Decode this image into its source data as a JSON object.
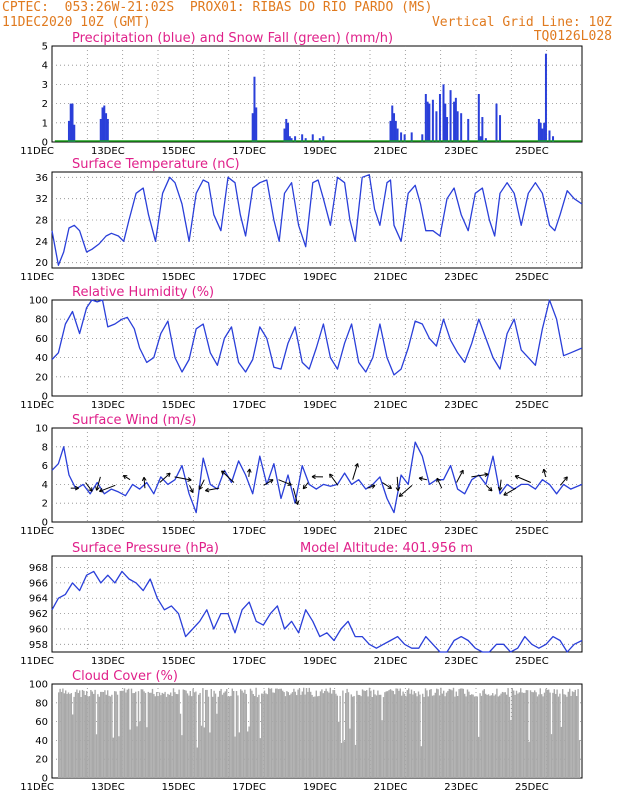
{
  "header": {
    "line1": "CPTEC:  053:26W-21:02S  PROX01: RIBAS DO RIO PARDO (MS)",
    "line2_left": "11DEC2020 10Z (GMT)",
    "line2_right": "Vertical Grid Line: 10Z",
    "line3_right": "TQ0126L028"
  },
  "colors": {
    "header": "#e07a1f",
    "title": "#e0208a",
    "line": "#2a3fd9",
    "snow": "#1a9e1a",
    "cloud": "#a9a9a9",
    "grid": "#8a8a8a",
    "arrow": "#000000"
  },
  "x_labels": [
    "11DEC",
    "13DEC",
    "15DEC",
    "17DEC",
    "19DEC",
    "21DEC",
    "23DEC",
    "25DEC"
  ],
  "chart_data": [
    {
      "type": "bar",
      "title": "Precipitation (blue) and Snow Fall (green) (mm/h)",
      "ylim": [
        0,
        5
      ],
      "yticks": [
        0,
        1,
        2,
        3,
        4,
        5
      ],
      "x_range_days": [
        11.42,
        26.42
      ],
      "series": [
        {
          "name": "Precipitation",
          "x": [
            11.9,
            11.95,
            12.0,
            12.05,
            12.8,
            12.85,
            12.9,
            12.95,
            13.0,
            17.1,
            17.15,
            17.2,
            18.0,
            18.05,
            18.1,
            18.15,
            18.2,
            18.3,
            18.5,
            18.6,
            18.8,
            19.0,
            19.1,
            21.0,
            21.05,
            21.1,
            21.15,
            21.2,
            21.3,
            21.4,
            21.6,
            21.9,
            22.0,
            22.05,
            22.1,
            22.2,
            22.3,
            22.4,
            22.5,
            22.55,
            22.6,
            22.7,
            22.8,
            22.85,
            22.9,
            23.0,
            23.2,
            23.5,
            23.55,
            23.6,
            23.7,
            24.0,
            24.1,
            25.2,
            25.25,
            25.3,
            25.35,
            25.4,
            25.5,
            25.6
          ],
          "values": [
            1.1,
            2.0,
            2.0,
            0.9,
            1.2,
            1.8,
            1.9,
            1.5,
            1.2,
            1.5,
            3.4,
            1.8,
            0.7,
            1.2,
            1.0,
            0.3,
            0.2,
            0.3,
            0.4,
            0.2,
            0.4,
            0.2,
            0.3,
            1.1,
            1.9,
            1.5,
            1.1,
            0.7,
            0.5,
            0.4,
            0.5,
            0.4,
            2.5,
            2.1,
            2.0,
            2.2,
            1.6,
            2.5,
            3.0,
            2.0,
            1.3,
            2.7,
            2.1,
            2.3,
            1.6,
            1.5,
            1.2,
            2.5,
            0.3,
            1.3,
            0.2,
            2.0,
            1.4,
            1.2,
            1.0,
            0.7,
            1.0,
            4.6,
            0.6,
            0.3
          ]
        },
        {
          "name": "Snow Fall",
          "x": [
            11.5,
            26.4
          ],
          "values": [
            0.05,
            0.05
          ]
        }
      ]
    },
    {
      "type": "line",
      "title": "Surface Temperature (nC)",
      "ylim": [
        19,
        37
      ],
      "yticks": [
        20,
        24,
        28,
        32,
        36
      ],
      "x": [
        11.42,
        11.6,
        11.75,
        11.9,
        12.05,
        12.2,
        12.4,
        12.55,
        12.75,
        12.95,
        13.1,
        13.3,
        13.45,
        13.6,
        13.8,
        14.0,
        14.15,
        14.35,
        14.55,
        14.75,
        14.9,
        15.1,
        15.3,
        15.5,
        15.7,
        15.85,
        16.0,
        16.2,
        16.4,
        16.6,
        16.75,
        16.9,
        17.1,
        17.3,
        17.5,
        17.7,
        17.85,
        18.0,
        18.2,
        18.4,
        18.6,
        18.8,
        18.95,
        19.1,
        19.3,
        19.5,
        19.7,
        19.85,
        20.0,
        20.2,
        20.4,
        20.55,
        20.7,
        20.9,
        21.0,
        21.1,
        21.3,
        21.5,
        21.7,
        21.85,
        22.0,
        22.2,
        22.4,
        22.6,
        22.8,
        23.0,
        23.2,
        23.4,
        23.6,
        23.8,
        23.95,
        24.1,
        24.3,
        24.5,
        24.7,
        24.9,
        25.1,
        25.3,
        25.5,
        25.65,
        25.8,
        26.0,
        26.2,
        26.42
      ],
      "values": [
        26,
        19.5,
        22,
        26.5,
        27,
        26,
        22,
        22.5,
        23.5,
        25,
        25.5,
        25,
        24,
        28,
        33,
        34,
        29,
        24,
        33,
        36,
        35,
        31,
        24,
        33,
        35.5,
        35,
        29,
        26,
        36,
        35,
        29,
        25,
        34,
        35,
        35.5,
        28,
        24,
        33,
        35,
        27,
        23,
        35,
        35.5,
        32,
        27,
        36,
        35,
        28,
        24,
        36,
        36.5,
        30,
        27,
        35,
        35.5,
        27,
        24,
        33,
        34.5,
        31,
        26,
        26,
        25,
        32,
        34,
        29,
        26,
        33,
        34,
        28,
        25,
        33,
        35,
        33,
        27,
        33,
        35,
        33,
        27,
        26,
        29,
        33.5,
        32,
        31
      ]
    },
    {
      "type": "line",
      "title": "Relative Humidity (%)",
      "ylim": [
        0,
        100
      ],
      "yticks": [
        0,
        20,
        40,
        60,
        80,
        100
      ],
      "x": [
        11.42,
        11.6,
        11.8,
        12.0,
        12.2,
        12.4,
        12.55,
        12.7,
        12.85,
        13.0,
        13.2,
        13.4,
        13.55,
        13.75,
        13.9,
        14.1,
        14.3,
        14.5,
        14.7,
        14.9,
        15.1,
        15.3,
        15.5,
        15.7,
        15.9,
        16.1,
        16.3,
        16.5,
        16.7,
        16.9,
        17.1,
        17.3,
        17.5,
        17.7,
        17.9,
        18.1,
        18.3,
        18.5,
        18.7,
        18.9,
        19.1,
        19.3,
        19.5,
        19.7,
        19.9,
        20.1,
        20.3,
        20.5,
        20.7,
        20.9,
        21.1,
        21.3,
        21.5,
        21.7,
        21.9,
        22.1,
        22.3,
        22.5,
        22.7,
        22.9,
        23.1,
        23.3,
        23.5,
        23.7,
        23.9,
        24.1,
        24.3,
        24.5,
        24.7,
        24.9,
        25.1,
        25.3,
        25.5,
        25.7,
        25.9,
        26.1,
        26.42
      ],
      "values": [
        38,
        45,
        75,
        88,
        65,
        92,
        100,
        98,
        100,
        72,
        75,
        80,
        82,
        70,
        50,
        35,
        40,
        65,
        78,
        40,
        25,
        38,
        70,
        75,
        45,
        32,
        60,
        72,
        35,
        25,
        38,
        72,
        60,
        30,
        28,
        55,
        72,
        35,
        28,
        50,
        75,
        40,
        28,
        55,
        75,
        35,
        25,
        40,
        75,
        40,
        22,
        28,
        50,
        78,
        75,
        60,
        52,
        80,
        58,
        45,
        35,
        55,
        80,
        60,
        40,
        28,
        65,
        80,
        48,
        40,
        32,
        70,
        100,
        80,
        42,
        45,
        50
      ]
    },
    {
      "type": "line",
      "title": "Surface Wind (m/s)",
      "ylim": [
        0,
        10
      ],
      "yticks": [
        0,
        2,
        4,
        6,
        8,
        10
      ],
      "x": [
        11.42,
        11.6,
        11.75,
        11.9,
        12.1,
        12.3,
        12.5,
        12.7,
        12.9,
        13.1,
        13.3,
        13.5,
        13.7,
        13.9,
        14.1,
        14.3,
        14.5,
        14.7,
        14.9,
        15.1,
        15.3,
        15.5,
        15.7,
        15.9,
        16.1,
        16.3,
        16.5,
        16.7,
        16.9,
        17.1,
        17.3,
        17.5,
        17.7,
        17.9,
        18.1,
        18.3,
        18.5,
        18.7,
        18.9,
        19.1,
        19.3,
        19.5,
        19.7,
        19.9,
        20.1,
        20.3,
        20.5,
        20.7,
        20.9,
        21.1,
        21.3,
        21.5,
        21.7,
        21.9,
        22.1,
        22.3,
        22.5,
        22.7,
        22.9,
        23.1,
        23.3,
        23.5,
        23.7,
        23.9,
        24.1,
        24.3,
        24.5,
        24.7,
        24.9,
        25.1,
        25.3,
        25.5,
        25.7,
        25.9,
        26.1,
        26.42
      ],
      "values": [
        5.5,
        6.2,
        8.0,
        5.0,
        3.5,
        4.0,
        3.0,
        4.2,
        3.0,
        3.5,
        3.2,
        2.8,
        4.0,
        3.5,
        4.2,
        3.0,
        4.8,
        4.0,
        4.5,
        6.0,
        3.0,
        1.0,
        6.8,
        4.0,
        3.5,
        5.5,
        4.2,
        6.5,
        5.0,
        3.0,
        7.0,
        4.0,
        6.2,
        2.5,
        5.0,
        2.0,
        6.0,
        4.0,
        3.5,
        4.0,
        3.8,
        4.0,
        5.2,
        4.0,
        4.5,
        3.5,
        4.0,
        4.8,
        2.5,
        1.0,
        5.0,
        4.0,
        8.5,
        7.0,
        4.0,
        4.5,
        4.5,
        6.0,
        3.5,
        3.0,
        4.5,
        5.0,
        4.0,
        7.0,
        3.0,
        4.0,
        3.5,
        4.0,
        4.0,
        3.5,
        4.5,
        4.0,
        3.0,
        4.0,
        3.5,
        4.0
      ]
    },
    {
      "type": "line",
      "title": "Surface Pressure (hPa)",
      "annotation": "Model Altitude: 401.956 m",
      "ylim": [
        957,
        969.5
      ],
      "yticks": [
        958,
        960,
        962,
        964,
        966,
        968
      ],
      "x": [
        11.42,
        11.6,
        11.8,
        12.0,
        12.2,
        12.4,
        12.6,
        12.8,
        13.0,
        13.2,
        13.4,
        13.6,
        13.8,
        14.0,
        14.2,
        14.4,
        14.6,
        14.8,
        15.0,
        15.2,
        15.4,
        15.6,
        15.8,
        16.0,
        16.2,
        16.4,
        16.6,
        16.8,
        17.0,
        17.2,
        17.4,
        17.6,
        17.8,
        18.0,
        18.2,
        18.4,
        18.6,
        18.8,
        19.0,
        19.2,
        19.4,
        19.6,
        19.8,
        20.0,
        20.2,
        20.4,
        20.6,
        20.8,
        21.0,
        21.2,
        21.4,
        21.6,
        21.8,
        22.0,
        22.2,
        22.4,
        22.6,
        22.8,
        23.0,
        23.2,
        23.4,
        23.6,
        23.8,
        24.0,
        24.2,
        24.4,
        24.6,
        24.8,
        25.0,
        25.2,
        25.4,
        25.6,
        25.8,
        26.0,
        26.2,
        26.42
      ],
      "values": [
        962.5,
        964,
        964.5,
        966,
        965,
        967,
        967.5,
        966,
        967,
        966,
        967.5,
        966.5,
        966,
        965,
        966.5,
        964,
        962.5,
        963,
        962,
        959,
        960,
        961,
        962.5,
        960,
        962,
        962,
        959.5,
        962.5,
        963.5,
        961,
        960.5,
        962,
        963,
        960,
        961,
        959.5,
        962.5,
        961,
        959,
        959.5,
        958.5,
        960,
        961,
        959,
        959,
        958,
        957.5,
        958,
        958.5,
        959,
        958,
        957.5,
        957.5,
        959,
        958,
        957,
        957,
        958.5,
        959,
        958.5,
        957.5,
        957,
        956.5,
        958,
        958,
        957,
        957.5,
        959,
        958,
        957.5,
        958,
        959,
        958.5,
        957,
        958,
        958.5
      ]
    },
    {
      "type": "bar",
      "title": "Cloud Cover (%)",
      "ylim": [
        0,
        100
      ],
      "yticks": [
        0,
        20,
        40,
        60,
        80,
        100
      ]
    }
  ]
}
